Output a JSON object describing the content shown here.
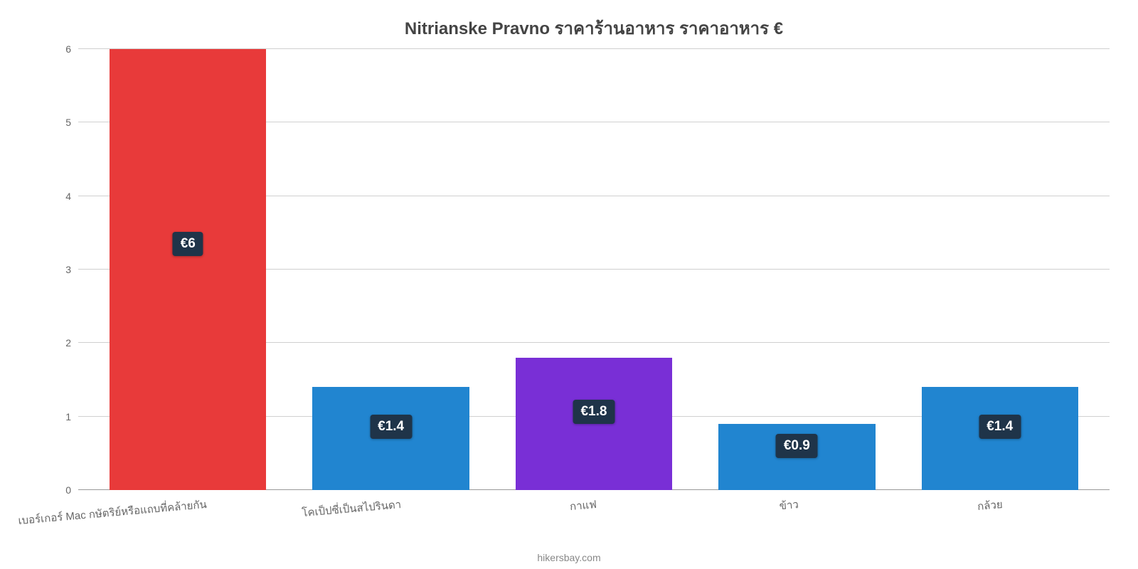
{
  "chart": {
    "type": "bar",
    "title": "Nitrianske Pravno ราคาร้านอาหาร ราคาอาหาร €",
    "title_color": "#444444",
    "title_fontsize": 24,
    "background_color": "#ffffff",
    "grid_color": "#d0d0d0",
    "axis_label_color": "#666666",
    "axis_fontsize": 14,
    "badge_bg": "#1f3449",
    "badge_text_color": "#ffffff",
    "badge_fontsize": 19,
    "ylim": [
      0,
      6
    ],
    "yticks": [
      0,
      1,
      2,
      3,
      4,
      5,
      6
    ],
    "bar_width_pct": 15.2,
    "gap_pct": 4.48,
    "source": "hikersbay.com",
    "categories": [
      "เบอร์เกอร์ Mac กษัตริย์หรือแถบที่คล้ายกัน",
      "โคเป็ปซี่เป็นสไปรินดา",
      "กาแฟ",
      "ข้าว",
      "กล้วย"
    ],
    "values": [
      6,
      1.4,
      1.8,
      0.9,
      1.4
    ],
    "value_labels": [
      "€6",
      "€1.4",
      "€1.8",
      "€0.9",
      "€1.4"
    ],
    "bar_colors": [
      "#e83a3a",
      "#2185d0",
      "#792fd6",
      "#2185d0",
      "#2185d0"
    ]
  }
}
